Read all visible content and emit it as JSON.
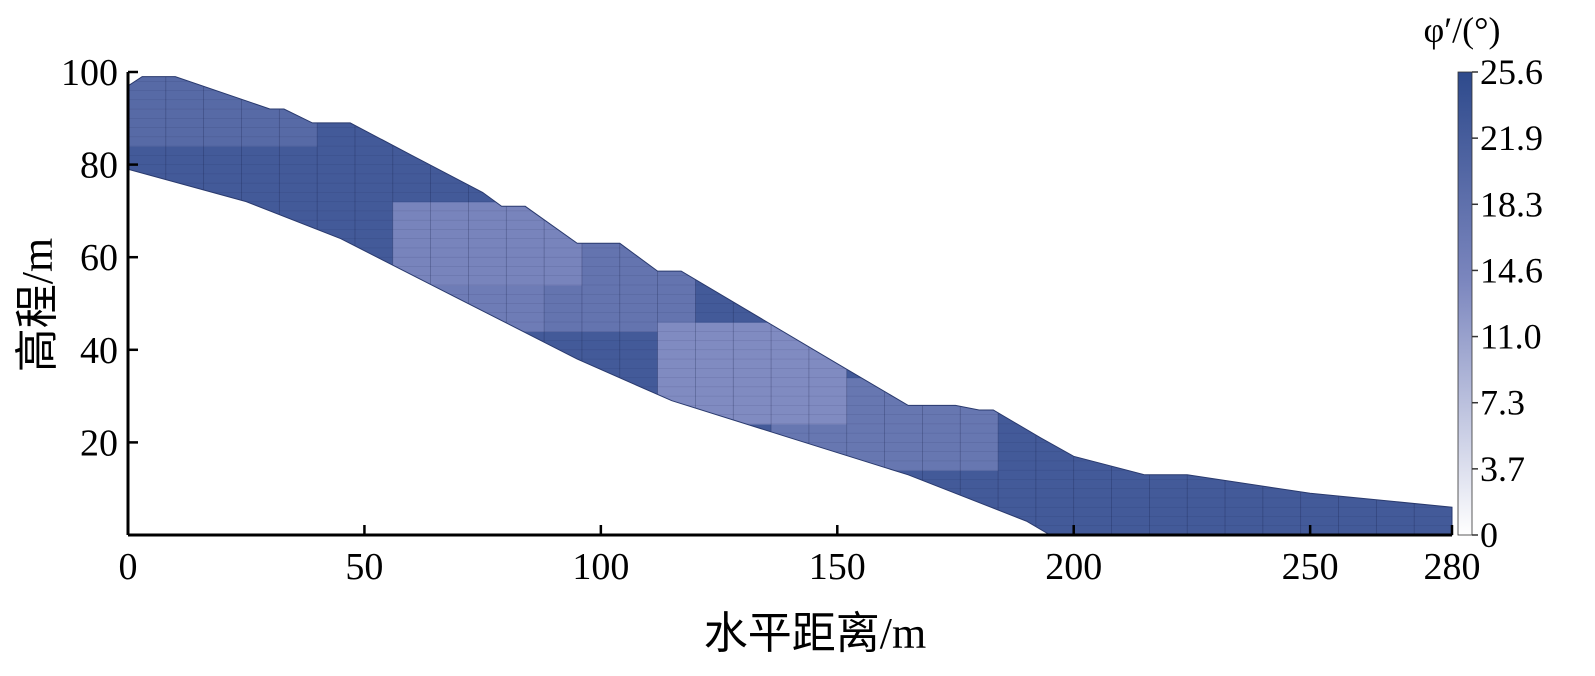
{
  "chart_data": {
    "type": "heatmap",
    "title": "",
    "xlabel": "水平距离/m",
    "ylabel": "高程/m",
    "xlim": [
      0,
      280
    ],
    "ylim": [
      0,
      100
    ],
    "x_ticks": [
      0,
      50,
      100,
      150,
      200,
      250,
      280
    ],
    "y_ticks": [
      20,
      40,
      60,
      80,
      100
    ],
    "colorbar": {
      "title": "φ′/(°)",
      "min": 0,
      "max": 25.6,
      "ticks": [
        "25.6",
        "21.9",
        "18.3",
        "14.6",
        "11.0",
        "7.3",
        "3.7",
        "0"
      ],
      "colors": [
        "#ffffff",
        "#2e4a8c"
      ]
    },
    "grid": false,
    "slope_top": [
      [
        0,
        97
      ],
      [
        3,
        99
      ],
      [
        10,
        99
      ],
      [
        30,
        92
      ],
      [
        33,
        92
      ],
      [
        39,
        89
      ],
      [
        47,
        89
      ],
      [
        60,
        82
      ],
      [
        75,
        74
      ],
      [
        79,
        71
      ],
      [
        84,
        71
      ],
      [
        95,
        63
      ],
      [
        104,
        63
      ],
      [
        112,
        57
      ],
      [
        117,
        57
      ],
      [
        150,
        37
      ],
      [
        165,
        28
      ],
      [
        175,
        28
      ],
      [
        180,
        27
      ],
      [
        183,
        27
      ],
      [
        193,
        21
      ],
      [
        200,
        17
      ],
      [
        215,
        13
      ],
      [
        224,
        13
      ],
      [
        250,
        9
      ],
      [
        280,
        6
      ]
    ],
    "slope_bottom": [
      [
        0,
        79
      ],
      [
        25,
        72
      ],
      [
        45,
        64
      ],
      [
        70,
        51
      ],
      [
        95,
        38
      ],
      [
        115,
        29
      ],
      [
        140,
        21
      ],
      [
        165,
        13
      ],
      [
        190,
        3
      ],
      [
        195,
        0
      ],
      [
        280,
        0
      ]
    ],
    "phi_field": {
      "description_units": "degrees",
      "background_value": 22.5,
      "low_zones": [
        {
          "x": [
            60,
            95
          ],
          "y": [
            55,
            72
          ],
          "value": 14.5
        },
        {
          "x": [
            85,
            120
          ],
          "y": [
            45,
            63
          ],
          "value": 17.5
        },
        {
          "x": [
            112,
            155
          ],
          "y": [
            25,
            45
          ],
          "value": 13.5
        },
        {
          "x": [
            140,
            185
          ],
          "y": [
            15,
            33
          ],
          "value": 17.0
        },
        {
          "x": [
            60,
            90
          ],
          "y": [
            45,
            58
          ],
          "value": 16.0
        },
        {
          "x": [
            0,
            40
          ],
          "y": [
            85,
            99
          ],
          "value": 19.5
        }
      ]
    }
  }
}
